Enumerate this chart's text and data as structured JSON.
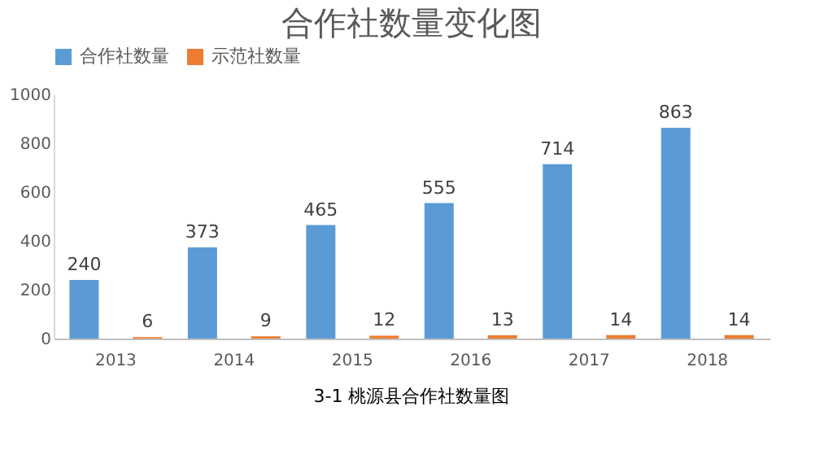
{
  "chart_data": {
    "type": "bar",
    "title": "合作社数量变化图",
    "categories": [
      "2013",
      "2014",
      "2015",
      "2016",
      "2017",
      "2018"
    ],
    "series": [
      {
        "name": "合作社数量",
        "color": "#5b9bd5",
        "values": [
          240,
          373,
          465,
          555,
          714,
          863
        ]
      },
      {
        "name": "示范社数量",
        "color": "#ed7d31",
        "values": [
          6,
          9,
          12,
          13,
          14,
          14
        ]
      }
    ],
    "ylim": [
      0,
      1000
    ],
    "yticks": [
      0,
      200,
      400,
      600,
      800,
      1000
    ],
    "grid": false,
    "legend": "top",
    "data_labels": true,
    "annotations": [
      "3-1 桃源县合作社数量图"
    ]
  }
}
